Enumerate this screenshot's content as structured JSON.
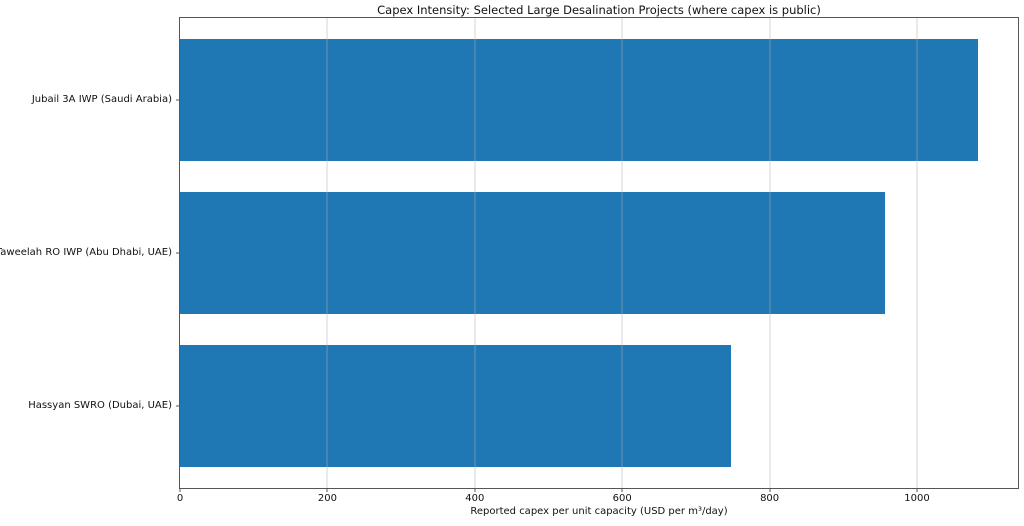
{
  "chart_data": {
    "type": "bar",
    "orientation": "horizontal",
    "title": "Capex Intensity: Selected Large Desalination Projects (where capex is public)",
    "categories": [
      "Jubail 3A IWP (Saudi Arabia)",
      "Taweelah RO IWP (Abu Dhabi, UAE)",
      "Hassyan SWRO (Dubai, UAE)"
    ],
    "values": [
      1083,
      957,
      748
    ],
    "xlabel": "Reported capex per unit capacity (USD per m³/day)",
    "ylabel": "",
    "xlim": [
      0,
      1137
    ],
    "xticks": [
      0,
      200,
      400,
      600,
      800,
      1000
    ],
    "bar_color": "#1f77b4",
    "grid": true,
    "grid_over_bars": true,
    "grid_color": "#b0b0b0",
    "axis_color": "#565656",
    "legend": false
  }
}
